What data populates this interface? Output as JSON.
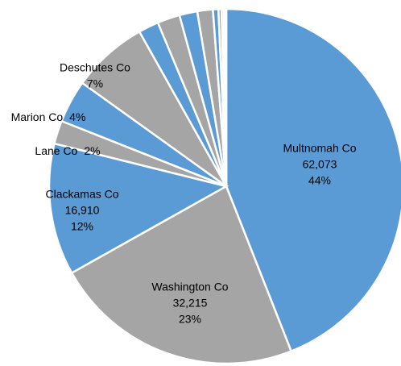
{
  "chart_data": {
    "type": "pie",
    "categories": [
      "Multnomah Co",
      "Washington Co",
      "Clackamas Co",
      "Lane Co",
      "Marion Co",
      "Deschutes Co",
      null,
      null,
      null,
      null,
      null,
      null,
      null,
      null,
      null
    ],
    "values": [
      62073,
      32215,
      16910,
      3000,
      5500,
      9800,
      2600,
      2900,
      2300,
      2000,
      700,
      400,
      300,
      200,
      100
    ],
    "value_labels": [
      "62,073",
      "32,215",
      "16,910",
      null,
      null,
      null,
      null,
      null,
      null,
      null,
      null,
      null,
      null,
      null,
      null
    ],
    "percent_labels": [
      "44%",
      "23%",
      "12%",
      "2%",
      "4%",
      "7%",
      null,
      null,
      null,
      null,
      null,
      null,
      null,
      null,
      null
    ],
    "colors": [
      "#5b9bd5",
      "#a5a5a5",
      "#5b9bd5",
      "#a5a5a5",
      "#5b9bd5",
      "#a5a5a5",
      "#5b9bd5",
      "#a5a5a5",
      "#5b9bd5",
      "#a5a5a5",
      "#5b9bd5",
      "#a5a5a5",
      "#c9c9c9",
      "#ffe699",
      "#dbe5f1"
    ]
  }
}
